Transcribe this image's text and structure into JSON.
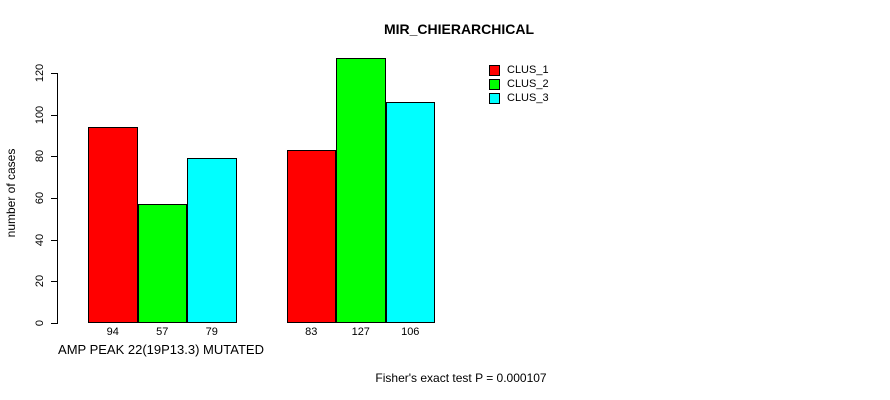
{
  "title": "MIR_CHIERARCHICAL",
  "chart_data": {
    "type": "bar",
    "title": "MIR_CHIERARCHICAL",
    "ylabel": "number of cases",
    "xlabel": "AMP PEAK 22(19P13.3) MUTATED",
    "ylim": [
      0,
      120
    ],
    "yticks": [
      0,
      20,
      40,
      60,
      80,
      100,
      120
    ],
    "categories": [
      "AMP PEAK 22(19P13.3) MUTATED",
      ""
    ],
    "series": [
      {
        "name": "CLUS_1",
        "color": "#ff0000",
        "values": [
          94,
          83
        ]
      },
      {
        "name": "CLUS_2",
        "color": "#00ff00",
        "values": [
          57,
          127
        ]
      },
      {
        "name": "CLUS_3",
        "color": "#00ffff",
        "values": [
          79,
          106
        ]
      }
    ],
    "bar_value_labels": [
      [
        94,
        57,
        79
      ],
      [
        83,
        127,
        106
      ]
    ],
    "legend_position": "top-right",
    "grid": false,
    "annotation": "Fisher's exact test P = 0.000107"
  }
}
